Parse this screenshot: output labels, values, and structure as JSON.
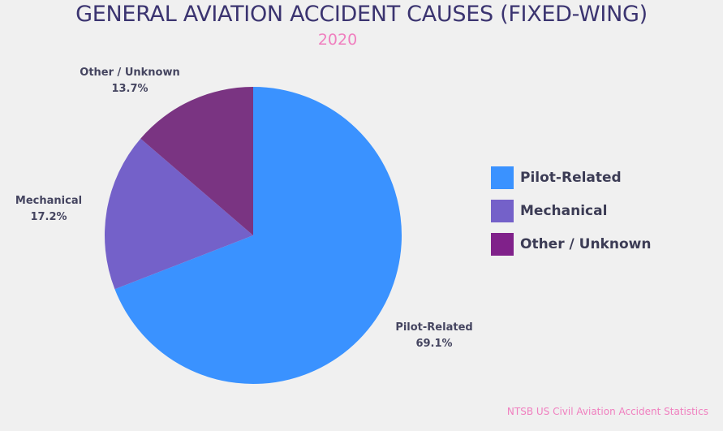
{
  "chart_data": {
    "type": "pie",
    "title": "GENERAL AVIATION ACCIDENT CAUSES (FIXED-WING)",
    "subtitle": "2020",
    "source": "NTSB US Civil Aviation Accident Statistics",
    "legend_position": "right",
    "slices": [
      {
        "label": "Pilot-Related",
        "value": 69.1,
        "value_text": "69.1%",
        "color": "#3a92ff"
      },
      {
        "label": "Mechanical",
        "value": 17.2,
        "value_text": "17.2%",
        "color": "#7461c9"
      },
      {
        "label": "Other / Unknown",
        "value": 13.7,
        "value_text": "13.7%",
        "color": "#7a3482"
      }
    ],
    "legend_colors": [
      "#3a92ff",
      "#7461c9",
      "#80218a"
    ]
  }
}
